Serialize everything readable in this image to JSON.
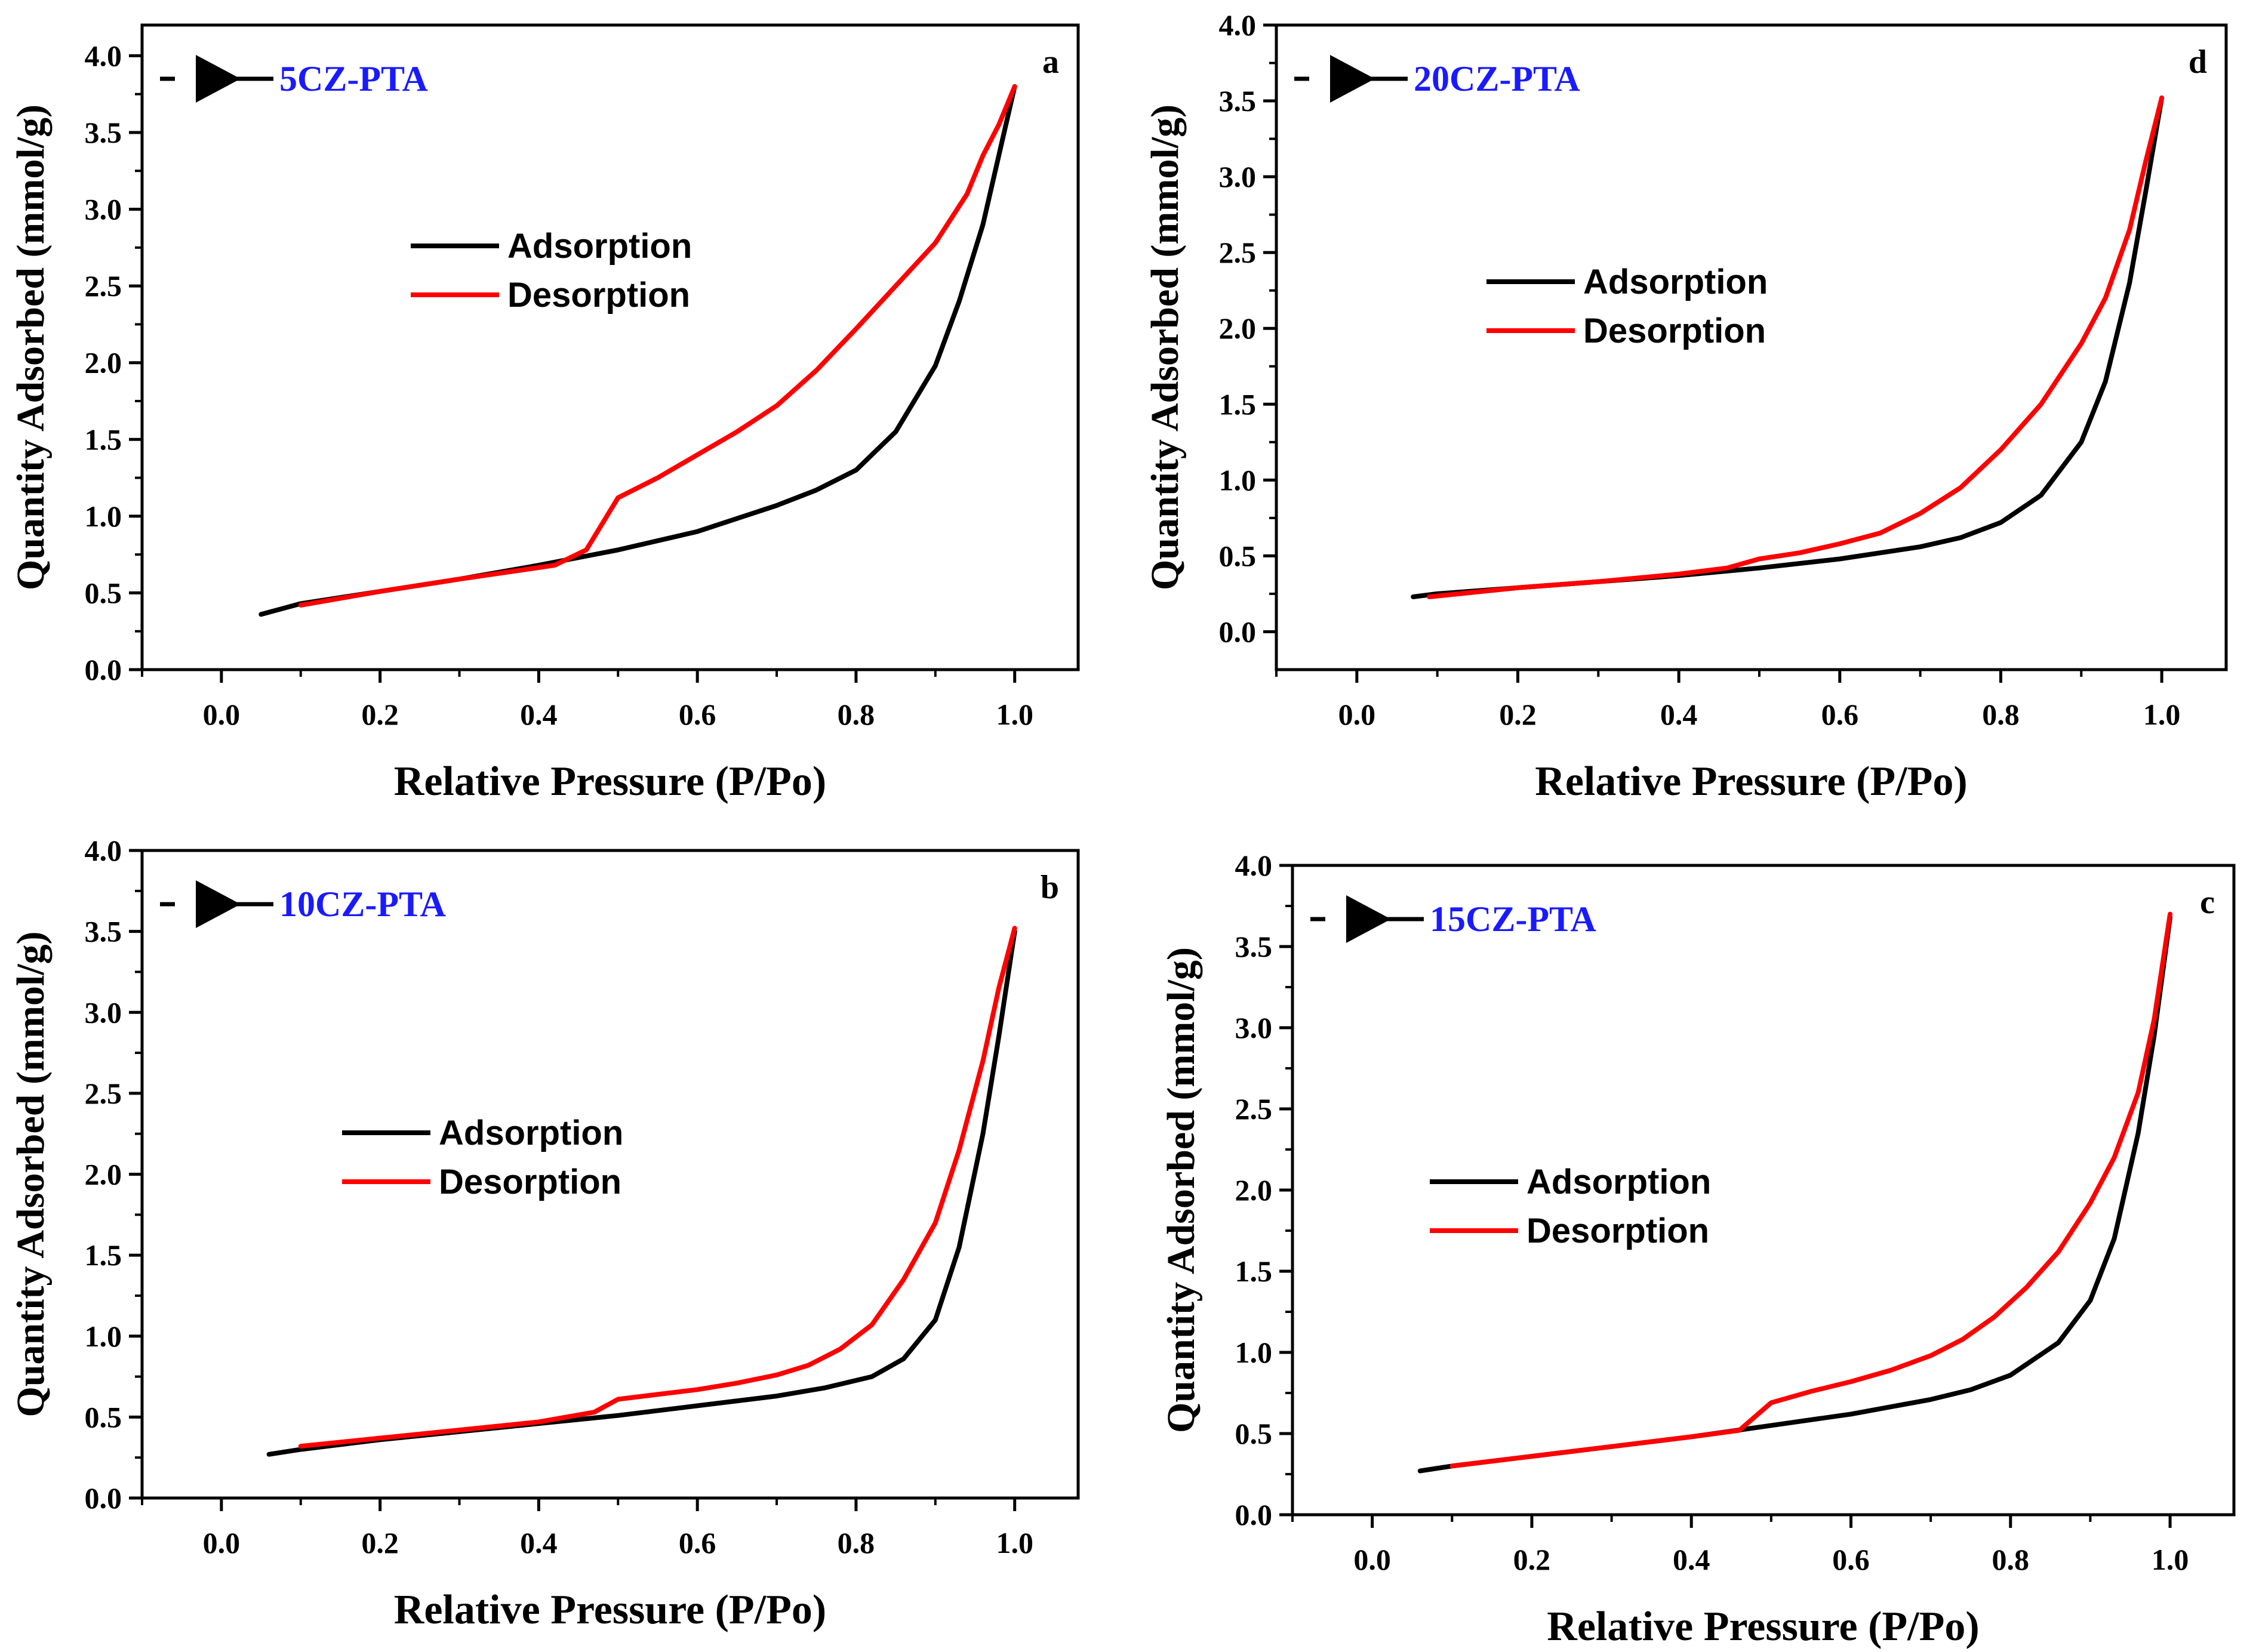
{
  "colors": {
    "adsorption": "#000000",
    "desorption": "#ff0000",
    "sample_label": "#1a1aff",
    "axis": "#000000"
  },
  "legend_marker_icon": "right-triangle-marker-icon",
  "chart_data": [
    {
      "type": "line",
      "panel": "a",
      "sample": "5CZ-PTA",
      "xlabel": "Relative Pressure (P/Po)",
      "ylabel": "Quantity Adsorbed (mmol/g)",
      "xlim": [
        -0.1,
        1.08
      ],
      "ylim": [
        0,
        4.2
      ],
      "xticks": [
        "0.0",
        "0.2",
        "0.4",
        "0.6",
        "0.8",
        "1.0"
      ],
      "yticks": [
        "0.0",
        "0.5",
        "1.0",
        "1.5",
        "2.0",
        "2.5",
        "3.0",
        "3.5",
        "4.0"
      ],
      "legend": [
        "Adsorption",
        "Desorption"
      ],
      "series": [
        {
          "name": "Adsorption",
          "color": "#000000",
          "x": [
            0.05,
            0.1,
            0.2,
            0.3,
            0.4,
            0.5,
            0.6,
            0.7,
            0.75,
            0.8,
            0.85,
            0.9,
            0.93,
            0.96,
            0.98,
            1.0
          ],
          "y": [
            0.36,
            0.43,
            0.51,
            0.59,
            0.68,
            0.78,
            0.9,
            1.07,
            1.17,
            1.3,
            1.55,
            1.98,
            2.4,
            2.9,
            3.35,
            3.8
          ]
        },
        {
          "name": "Desorption",
          "color": "#ff0000",
          "x": [
            1.0,
            0.98,
            0.96,
            0.94,
            0.9,
            0.85,
            0.8,
            0.75,
            0.7,
            0.65,
            0.6,
            0.55,
            0.5,
            0.46,
            0.42,
            0.3,
            0.2,
            0.1
          ],
          "y": [
            3.8,
            3.55,
            3.35,
            3.1,
            2.78,
            2.5,
            2.22,
            1.95,
            1.72,
            1.55,
            1.4,
            1.25,
            1.12,
            0.78,
            0.68,
            0.59,
            0.51,
            0.42
          ]
        }
      ]
    },
    {
      "type": "line",
      "panel": "d",
      "sample": "20CZ-PTA",
      "xlabel": "Relative Pressure (P/Po)",
      "ylabel": "Quantity Adsorbed (mmol/g)",
      "xlim": [
        -0.1,
        1.08
      ],
      "ylim": [
        -0.25,
        4.0
      ],
      "xticks": [
        "0.0",
        "0.2",
        "0.4",
        "0.6",
        "0.8",
        "1.0"
      ],
      "yticks": [
        "0.0",
        "0.5",
        "1.0",
        "1.5",
        "2.0",
        "2.5",
        "3.0",
        "3.5",
        "4.0"
      ],
      "legend": [
        "Adsorption",
        "Desorption"
      ],
      "series": [
        {
          "name": "Adsorption",
          "color": "#000000",
          "x": [
            0.07,
            0.1,
            0.2,
            0.3,
            0.4,
            0.5,
            0.6,
            0.7,
            0.75,
            0.8,
            0.85,
            0.9,
            0.93,
            0.96,
            0.98,
            1.0
          ],
          "y": [
            0.23,
            0.25,
            0.29,
            0.33,
            0.37,
            0.42,
            0.48,
            0.56,
            0.62,
            0.72,
            0.9,
            1.25,
            1.65,
            2.3,
            2.9,
            3.52
          ]
        },
        {
          "name": "Desorption",
          "color": "#ff0000",
          "x": [
            1.0,
            0.98,
            0.96,
            0.93,
            0.9,
            0.85,
            0.8,
            0.75,
            0.7,
            0.65,
            0.6,
            0.55,
            0.5,
            0.46,
            0.4,
            0.3,
            0.2,
            0.09
          ],
          "y": [
            3.52,
            3.1,
            2.65,
            2.2,
            1.9,
            1.5,
            1.2,
            0.95,
            0.78,
            0.65,
            0.58,
            0.52,
            0.48,
            0.42,
            0.38,
            0.33,
            0.29,
            0.23
          ]
        }
      ]
    },
    {
      "type": "line",
      "panel": "b",
      "sample": "10CZ-PTA",
      "xlabel": "Relative Pressure (P/Po)",
      "ylabel": "Quantity Adsorbed (mmol/g)",
      "xlim": [
        -0.1,
        1.08
      ],
      "ylim": [
        0,
        4.0
      ],
      "xticks": [
        "0.0",
        "0.2",
        "0.4",
        "0.6",
        "0.8",
        "1.0"
      ],
      "yticks": [
        "0.0",
        "0.5",
        "1.0",
        "1.5",
        "2.0",
        "2.5",
        "3.0",
        "3.5",
        "4.0"
      ],
      "legend": [
        "Adsorption",
        "Desorption"
      ],
      "series": [
        {
          "name": "Adsorption",
          "color": "#000000",
          "x": [
            0.06,
            0.1,
            0.2,
            0.3,
            0.4,
            0.5,
            0.6,
            0.7,
            0.76,
            0.82,
            0.86,
            0.9,
            0.93,
            0.96,
            0.98,
            1.0
          ],
          "y": [
            0.27,
            0.3,
            0.36,
            0.41,
            0.46,
            0.51,
            0.57,
            0.63,
            0.68,
            0.75,
            0.86,
            1.1,
            1.55,
            2.25,
            2.85,
            3.5
          ]
        },
        {
          "name": "Desorption",
          "color": "#ff0000",
          "x": [
            1.0,
            0.98,
            0.96,
            0.93,
            0.9,
            0.86,
            0.82,
            0.78,
            0.74,
            0.7,
            0.65,
            0.6,
            0.55,
            0.5,
            0.47,
            0.4,
            0.3,
            0.2,
            0.1
          ],
          "y": [
            3.52,
            3.15,
            2.7,
            2.15,
            1.7,
            1.35,
            1.07,
            0.92,
            0.82,
            0.76,
            0.71,
            0.67,
            0.64,
            0.61,
            0.53,
            0.47,
            0.42,
            0.37,
            0.32
          ]
        }
      ]
    },
    {
      "type": "line",
      "panel": "c",
      "sample": "15CZ-PTA",
      "xlabel": "Relative Pressure (P/Po)",
      "ylabel": "Quantity Adsorbed (mmol/g)",
      "xlim": [
        -0.1,
        1.08
      ],
      "ylim": [
        0,
        4.0
      ],
      "xticks": [
        "0.0",
        "0.2",
        "0.4",
        "0.6",
        "0.8",
        "1.0"
      ],
      "yticks": [
        "0.0",
        "0.5",
        "1.0",
        "1.5",
        "2.0",
        "2.5",
        "3.0",
        "3.5",
        "4.0"
      ],
      "legend": [
        "Adsorption",
        "Desorption"
      ],
      "series": [
        {
          "name": "Adsorption",
          "color": "#000000",
          "x": [
            0.06,
            0.1,
            0.2,
            0.3,
            0.4,
            0.5,
            0.6,
            0.7,
            0.75,
            0.8,
            0.86,
            0.9,
            0.93,
            0.96,
            0.98,
            1.0
          ],
          "y": [
            0.27,
            0.3,
            0.36,
            0.42,
            0.48,
            0.55,
            0.62,
            0.71,
            0.77,
            0.86,
            1.06,
            1.32,
            1.7,
            2.35,
            2.95,
            3.68
          ]
        },
        {
          "name": "Desorption",
          "color": "#ff0000",
          "x": [
            1.0,
            0.98,
            0.96,
            0.93,
            0.9,
            0.86,
            0.82,
            0.78,
            0.74,
            0.7,
            0.65,
            0.6,
            0.55,
            0.5,
            0.46,
            0.4,
            0.3,
            0.2,
            0.1
          ],
          "y": [
            3.7,
            3.05,
            2.6,
            2.2,
            1.92,
            1.62,
            1.4,
            1.22,
            1.08,
            0.98,
            0.89,
            0.82,
            0.76,
            0.69,
            0.52,
            0.48,
            0.42,
            0.36,
            0.3
          ]
        }
      ]
    }
  ]
}
